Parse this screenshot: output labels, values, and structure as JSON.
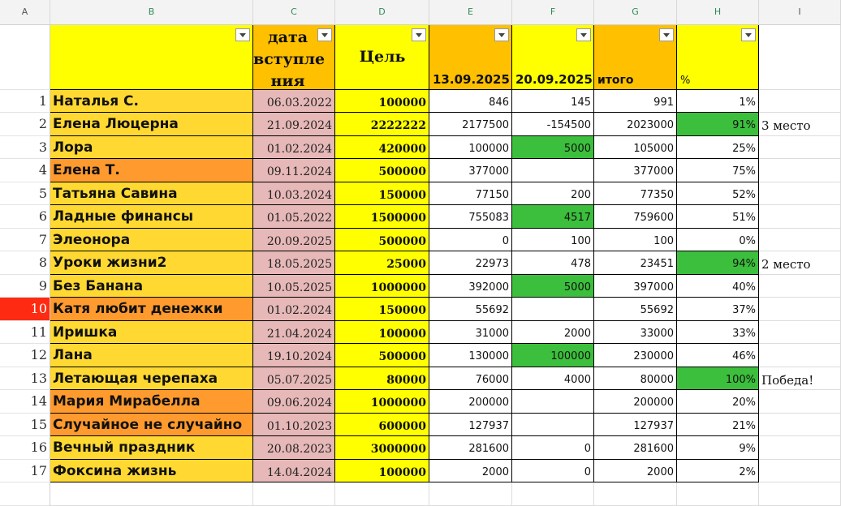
{
  "column_letters": [
    "A",
    "B",
    "C",
    "D",
    "E",
    "F",
    "G",
    "H",
    "I"
  ],
  "header": {
    "b": "",
    "c": "дата вступления",
    "c_lines": [
      "дата",
      "вступле",
      "ния"
    ],
    "d": "Цель",
    "e": "13.09.2025",
    "f": "20.09.2025",
    "g": "итого",
    "h": "%"
  },
  "colors": {
    "header_yellow": "#ffff00",
    "header_orange": "#ffc000",
    "name_yellow": "#ffd932",
    "name_orange": "#ff9a2e",
    "date_pink": "#e6b8b7",
    "goal_yellow": "#ffff00",
    "highlight_green": "#3cbf3c",
    "active_row": "#ff2a12"
  },
  "rows": [
    {
      "num": "1",
      "name": "Наталья С.",
      "name_style": "yellow",
      "date": "06.03.2022",
      "goal": "100000",
      "e": "846",
      "f": "145",
      "g": "991",
      "h": "1%",
      "note": "",
      "hl": []
    },
    {
      "num": "2",
      "name": "Елена Люцерна",
      "name_style": "yellow",
      "date": "21.09.2024",
      "goal": "2222222",
      "e": "2177500",
      "f": "-154500",
      "g": "2023000",
      "h": "91%",
      "note": "3 место",
      "hl": [
        "h"
      ]
    },
    {
      "num": "3",
      "name": "Лора",
      "name_style": "yellow",
      "date": "01.02.2024",
      "goal": "420000",
      "e": "100000",
      "f": "5000",
      "g": "105000",
      "h": "25%",
      "note": "",
      "hl": [
        "f"
      ]
    },
    {
      "num": "4",
      "name": "Елена Т.",
      "name_style": "orange",
      "date": "09.11.2024",
      "goal": "500000",
      "e": "377000",
      "f": "",
      "g": "377000",
      "h": "75%",
      "note": "",
      "hl": []
    },
    {
      "num": "5",
      "name": "Татьяна Савина",
      "name_style": "yellow",
      "date": "10.03.2024",
      "goal": "150000",
      "e": "77150",
      "f": "200",
      "g": "77350",
      "h": "52%",
      "note": "",
      "hl": []
    },
    {
      "num": "6",
      "name": "Ладные финансы",
      "name_style": "yellow",
      "date": "01.05.2022",
      "goal": "1500000",
      "e": "755083",
      "f": "4517",
      "g": "759600",
      "h": "51%",
      "note": "",
      "hl": [
        "f"
      ]
    },
    {
      "num": "7",
      "name": "Элеонора",
      "name_style": "yellow",
      "date": "20.09.2025",
      "goal": "500000",
      "e": "0",
      "f": "100",
      "g": "100",
      "h": "0%",
      "note": "",
      "hl": []
    },
    {
      "num": "8",
      "name": "Уроки жизни2",
      "name_style": "yellow",
      "date": "18.05.2025",
      "goal": "25000",
      "e": "22973",
      "f": "478",
      "g": "23451",
      "h": "94%",
      "note": "2 место",
      "hl": [
        "h"
      ]
    },
    {
      "num": "9",
      "name": "Без Банана",
      "name_style": "yellow",
      "date": "10.05.2025",
      "goal": "1000000",
      "e": "392000",
      "f": "5000",
      "g": "397000",
      "h": "40%",
      "note": "",
      "hl": [
        "f"
      ]
    },
    {
      "num": "10",
      "name": "Катя любит денежки",
      "name_style": "orange",
      "date": "01.02.2024",
      "goal": "150000",
      "e": "55692",
      "f": "",
      "g": "55692",
      "h": "37%",
      "note": "",
      "hl": [],
      "active": true
    },
    {
      "num": "11",
      "name": "Иришка",
      "name_style": "yellow",
      "date": "21.04.2024",
      "goal": "100000",
      "e": "31000",
      "f": "2000",
      "g": "33000",
      "h": "33%",
      "note": "",
      "hl": []
    },
    {
      "num": "12",
      "name": "Лана",
      "name_style": "yellow",
      "date": "19.10.2024",
      "goal": "500000",
      "e": "130000",
      "f": "100000",
      "g": "230000",
      "h": "46%",
      "note": "",
      "hl": [
        "f"
      ]
    },
    {
      "num": "13",
      "name": "Летающая черепаха",
      "name_style": "yellow",
      "date": "05.07.2025",
      "goal": "80000",
      "e": "76000",
      "f": "4000",
      "g": "80000",
      "h": "100%",
      "note": "Победа!",
      "hl": [
        "h"
      ]
    },
    {
      "num": "14",
      "name": "Мария Мирабелла",
      "name_style": "orange",
      "date": "09.06.2024",
      "goal": "1000000",
      "e": "200000",
      "f": "",
      "g": "200000",
      "h": "20%",
      "note": "",
      "hl": []
    },
    {
      "num": "15",
      "name": "Случайное не случайно",
      "name_style": "orange",
      "date": "01.10.2023",
      "goal": "600000",
      "e": "127937",
      "f": "",
      "g": "127937",
      "h": "21%",
      "note": "",
      "hl": []
    },
    {
      "num": "16",
      "name": "Вечный праздник",
      "name_style": "yellow",
      "date": "20.08.2023",
      "goal": "3000000",
      "e": "281600",
      "f": "0",
      "g": "281600",
      "h": "9%",
      "note": "",
      "hl": []
    },
    {
      "num": "17",
      "name": "Фоксина жизнь",
      "name_style": "yellow",
      "date": "14.04.2024",
      "goal": "100000",
      "e": "2000",
      "f": "0",
      "g": "2000",
      "h": "2%",
      "note": "",
      "hl": []
    }
  ]
}
